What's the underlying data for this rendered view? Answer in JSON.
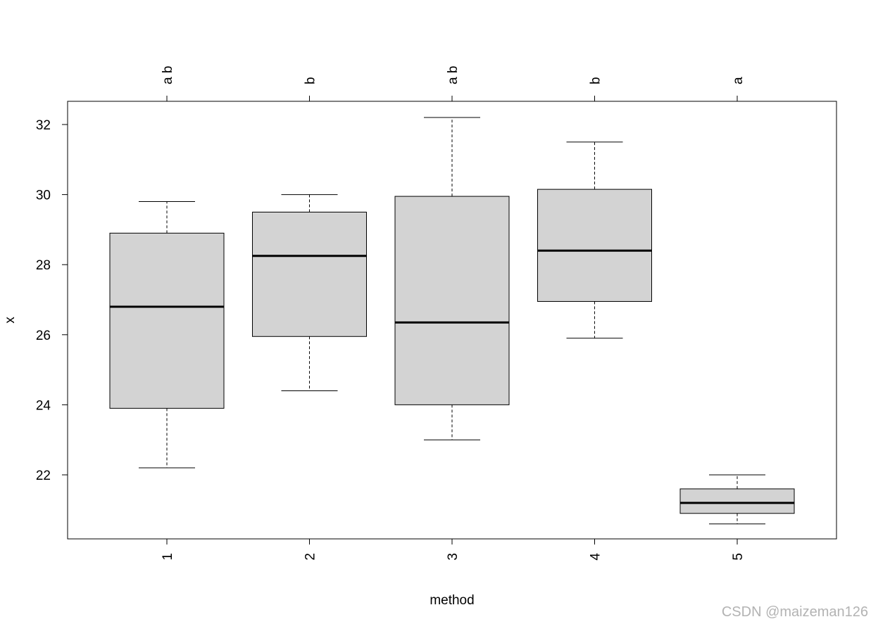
{
  "chart_data": {
    "type": "boxplot",
    "title": "",
    "xlabel": "method",
    "ylabel": "x",
    "ylim": [
      20.2,
      32.7
    ],
    "yticks": [
      22,
      24,
      26,
      28,
      30,
      32
    ],
    "categories": [
      "1",
      "2",
      "3",
      "4",
      "5"
    ],
    "boxes": [
      {
        "category": "1",
        "whisker_low": 22.2,
        "q1": 23.9,
        "median": 26.8,
        "q3": 28.9,
        "whisker_high": 29.8,
        "letters": "a b"
      },
      {
        "category": "2",
        "whisker_low": 24.4,
        "q1": 25.95,
        "median": 28.25,
        "q3": 29.5,
        "whisker_high": 30.0,
        "letters": "b"
      },
      {
        "category": "3",
        "whisker_low": 23.0,
        "q1": 24.0,
        "median": 26.35,
        "q3": 29.95,
        "whisker_high": 32.2,
        "letters": "a b"
      },
      {
        "category": "4",
        "whisker_low": 25.9,
        "q1": 26.95,
        "median": 28.4,
        "q3": 30.15,
        "whisker_high": 31.5,
        "letters": "b"
      },
      {
        "category": "5",
        "whisker_low": 20.6,
        "q1": 20.9,
        "median": 21.2,
        "q3": 21.6,
        "whisker_high": 22.0,
        "letters": "a"
      }
    ],
    "box_fill": "#d3d3d3",
    "line_color": "#000000",
    "grid": false,
    "legend": "none"
  },
  "watermark": "CSDN @maizeman126"
}
